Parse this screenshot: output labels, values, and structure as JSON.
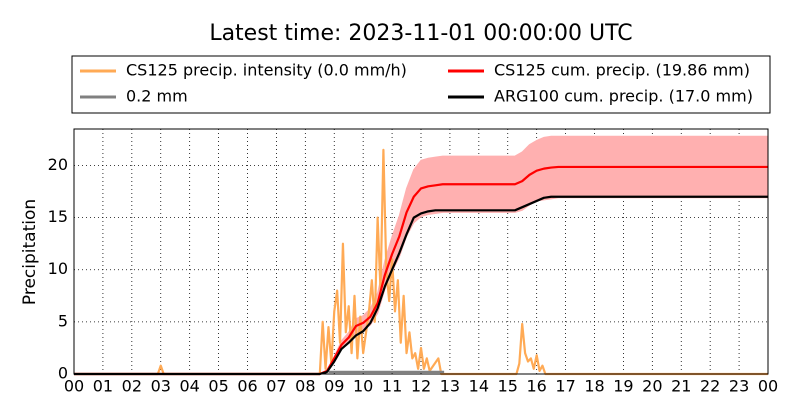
{
  "chart_data": {
    "type": "line",
    "title": "Latest time: 2023-11-01 00:00:00 UTC",
    "y_label": "Precipitation",
    "xlim": [
      0,
      24
    ],
    "ylim": [
      0,
      23.5
    ],
    "xticks": [
      {
        "value": 0,
        "label": "00"
      },
      {
        "value": 1,
        "label": "01"
      },
      {
        "value": 2,
        "label": "02"
      },
      {
        "value": 3,
        "label": "03"
      },
      {
        "value": 4,
        "label": "04"
      },
      {
        "value": 5,
        "label": "05"
      },
      {
        "value": 6,
        "label": "06"
      },
      {
        "value": 7,
        "label": "07"
      },
      {
        "value": 8,
        "label": "08"
      },
      {
        "value": 9,
        "label": "09"
      },
      {
        "value": 10,
        "label": "10"
      },
      {
        "value": 11,
        "label": "11"
      },
      {
        "value": 12,
        "label": "12"
      },
      {
        "value": 13,
        "label": "13"
      },
      {
        "value": 14,
        "label": "14"
      },
      {
        "value": 15,
        "label": "15"
      },
      {
        "value": 16,
        "label": "16"
      },
      {
        "value": 17,
        "label": "17"
      },
      {
        "value": 18,
        "label": "18"
      },
      {
        "value": 19,
        "label": "19"
      },
      {
        "value": 20,
        "label": "20"
      },
      {
        "value": 21,
        "label": "21"
      },
      {
        "value": 22,
        "label": "22"
      },
      {
        "value": 23,
        "label": "23"
      },
      {
        "value": 24,
        "label": "00"
      }
    ],
    "yticks": [
      0,
      5,
      10,
      15,
      20
    ],
    "grid": true,
    "legend": "top",
    "series": [
      {
        "name": "CS125 precip. intensity (0.0 mm/h)",
        "color": "#ffaa55",
        "x": [
          0,
          2.9,
          3.0,
          3.1,
          8.5,
          8.6,
          8.7,
          8.8,
          8.9,
          9.0,
          9.1,
          9.2,
          9.3,
          9.4,
          9.5,
          9.6,
          9.7,
          9.8,
          9.9,
          10.0,
          10.1,
          10.2,
          10.3,
          10.4,
          10.5,
          10.6,
          10.7,
          10.8,
          10.9,
          11.0,
          11.1,
          11.2,
          11.3,
          11.4,
          11.5,
          11.6,
          11.7,
          11.8,
          11.9,
          12.0,
          12.1,
          12.2,
          12.3,
          12.6,
          12.7,
          15.3,
          15.4,
          15.5,
          15.6,
          15.7,
          15.8,
          15.9,
          16.0,
          16.1,
          16.2,
          16.3,
          24
        ],
        "values": [
          0,
          0,
          0.8,
          0,
          0,
          5,
          0.5,
          4.5,
          1,
          6,
          8,
          3,
          12.5,
          4,
          6.5,
          2,
          7.5,
          1.5,
          5.5,
          2,
          4,
          6,
          9,
          5,
          15,
          8,
          21.5,
          10,
          7,
          11,
          6,
          9,
          3,
          7.5,
          2,
          4,
          1.5,
          2,
          0.5,
          2.5,
          0.5,
          1.5,
          0.3,
          1.5,
          0,
          0,
          1,
          4.8,
          2,
          1.2,
          1.5,
          0.5,
          1.8,
          0.3,
          0.8,
          0,
          0
        ]
      },
      {
        "name": "0.2 mm",
        "color": "#808080",
        "x": [
          8.8,
          12.8
        ],
        "values": [
          0.2,
          0.2
        ]
      },
      {
        "name": "CS125 cum. precip. (19.86 mm)",
        "color": "#ff0000",
        "band_color": "#ffb0b0",
        "x": [
          0,
          8.5,
          8.75,
          9,
          9.25,
          9.5,
          9.75,
          10,
          10.25,
          10.5,
          10.75,
          11,
          11.25,
          11.5,
          11.75,
          12,
          12.25,
          12.5,
          12.75,
          13,
          13.25,
          13.5,
          13.75,
          14,
          14.25,
          14.5,
          14.75,
          15,
          15.25,
          15.5,
          15.75,
          16,
          16.25,
          16.5,
          16.75,
          17,
          24
        ],
        "values": [
          0,
          0,
          0.3,
          1.5,
          2.8,
          3.5,
          4.6,
          4.9,
          5.5,
          6.8,
          9.5,
          11.5,
          13.2,
          15.5,
          17.0,
          17.8,
          18.0,
          18.1,
          18.2,
          18.2,
          18.2,
          18.2,
          18.2,
          18.2,
          18.2,
          18.2,
          18.2,
          18.2,
          18.2,
          18.5,
          19.1,
          19.5,
          19.7,
          19.8,
          19.86,
          19.86,
          19.86
        ],
        "band_upper": [
          0,
          0,
          0.35,
          1.7,
          3.2,
          4.0,
          5.3,
          5.6,
          6.3,
          7.8,
          10.9,
          13.2,
          15.2,
          17.8,
          19.6,
          20.5,
          20.7,
          20.8,
          20.9,
          20.9,
          20.9,
          20.9,
          20.9,
          20.9,
          20.9,
          20.9,
          20.9,
          20.9,
          20.9,
          21.3,
          22.0,
          22.4,
          22.7,
          22.8,
          22.8,
          22.8,
          22.8
        ],
        "band_lower": [
          0,
          0,
          0.25,
          1.3,
          2.4,
          3.0,
          3.9,
          4.2,
          4.7,
          5.8,
          8.1,
          9.8,
          11.2,
          13.2,
          14.5,
          15.1,
          15.3,
          15.4,
          15.5,
          15.5,
          15.5,
          15.5,
          15.5,
          15.5,
          15.5,
          15.5,
          15.5,
          15.5,
          15.5,
          15.7,
          16.2,
          16.6,
          16.7,
          16.8,
          16.9,
          16.9,
          16.9
        ]
      },
      {
        "name": "ARG100 cum. precip. (17.0 mm)",
        "color": "#000000",
        "x": [
          0,
          8.5,
          8.75,
          9,
          9.25,
          9.5,
          9.75,
          10,
          10.25,
          10.5,
          10.75,
          11,
          11.25,
          11.5,
          11.75,
          12,
          12.25,
          12.5,
          12.75,
          13,
          13.25,
          13.5,
          13.75,
          14,
          14.25,
          14.5,
          14.75,
          15,
          15.25,
          15.5,
          15.75,
          16,
          16.25,
          16.5,
          16.75,
          17,
          24
        ],
        "values": [
          0,
          0,
          0.2,
          1.2,
          2.4,
          3.0,
          3.7,
          4.1,
          4.9,
          6.3,
          8.4,
          10.0,
          11.6,
          13.4,
          15.0,
          15.4,
          15.6,
          15.7,
          15.7,
          15.7,
          15.7,
          15.7,
          15.7,
          15.7,
          15.7,
          15.7,
          15.7,
          15.7,
          15.7,
          16.0,
          16.3,
          16.6,
          16.9,
          17.0,
          17.0,
          17.0,
          17.0
        ]
      }
    ]
  }
}
